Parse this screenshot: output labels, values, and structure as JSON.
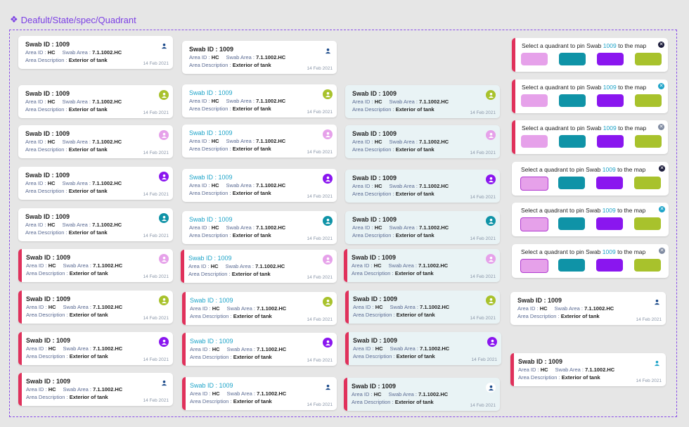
{
  "page": {
    "title": "Deafult/State/spec/Quadrant"
  },
  "labels": {
    "swab_id": "Swab ID :",
    "swab_value": "1009",
    "area_id": "Area ID :",
    "area_id_value": "HC",
    "swab_area": "Swab Area :",
    "swab_area_value": "7.1.1002.HC",
    "area_desc": "Area Description :",
    "area_desc_value": "Exterior of tank",
    "date": "14 Feb 2021"
  },
  "quadrant": {
    "text_pre": "Select a quadrant to pin Swab",
    "text_num": "1009",
    "text_post": "to the map",
    "close": "✕"
  },
  "colors": {
    "accent": "#7b3fe4",
    "red_bar": "#e0315b",
    "pink": "#e6a1ea",
    "teal": "#0f93a7",
    "purple": "#8a16ef",
    "green": "#a8c22c",
    "blue_text": "#1ca3c8"
  },
  "icons": {
    "title": "component-diamond-icon",
    "swab": "person-pin-icon",
    "close": "close-icon"
  }
}
